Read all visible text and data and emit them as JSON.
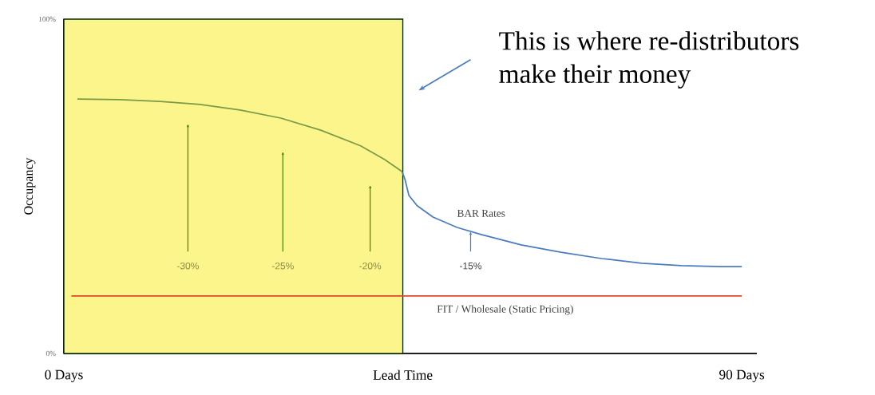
{
  "chart_data": {
    "type": "line",
    "ylabel": "Occupancy",
    "xlim": [
      0,
      92
    ],
    "ylim": [
      0,
      100
    ],
    "xticks": [
      {
        "value": 0,
        "label": "0 Days"
      },
      {
        "value": 45,
        "label": "Lead Time"
      },
      {
        "value": 90,
        "label": "90 Days"
      }
    ],
    "yticks": [
      {
        "value": 0,
        "label": "0%"
      },
      {
        "value": 100,
        "label": "100%"
      }
    ],
    "series": [
      {
        "color": "#7c9a45",
        "x": [
          1.8,
          7.5,
          12.8,
          18.1,
          23.4,
          28.8,
          34.1,
          39.4,
          42.6,
          44.9
        ],
        "values": [
          76.1,
          75.9,
          75.4,
          74.5,
          72.8,
          70.4,
          66.8,
          62.1,
          58.0,
          54.4
        ]
      },
      {
        "name": "BAR Rates",
        "color": "#4a7bbf",
        "x": [
          44.9,
          45.3,
          45.8,
          46.9,
          49.0,
          52.2,
          55.4,
          60.7,
          66.0,
          71.4,
          76.7,
          82.0,
          87.3,
          90
        ],
        "values": [
          54.4,
          52.0,
          47.3,
          44.2,
          40.8,
          37.7,
          35.6,
          32.5,
          30.3,
          28.4,
          27.0,
          26.3,
          26.0,
          26.0
        ]
      },
      {
        "name": "FIT / Wholesale (Static Pricing)",
        "color": "#e2472b",
        "x": [
          1,
          90
        ],
        "values": [
          17.2,
          17.2
        ]
      }
    ],
    "bands": [
      {
        "axis": "x",
        "from": 0,
        "to": 45,
        "color": "#fbf58c"
      }
    ],
    "annotations": [
      "This is where re-distributors make their money",
      "-30%",
      "-25%",
      "-20%",
      {
        "text": "-15%",
        "x": 54.0,
        "y": 36.5
      }
    ],
    "marker": "none",
    "line_style": "solid",
    "grid": false
  }
}
